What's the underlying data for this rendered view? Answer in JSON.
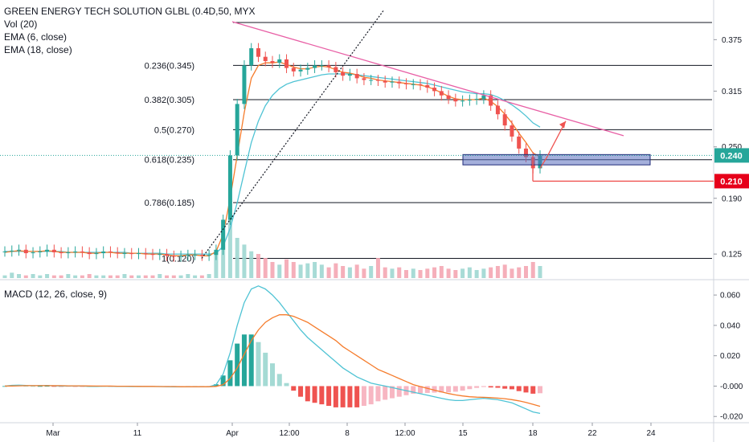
{
  "header": {
    "symbol_title": "GREEN ENERGY TECH SOLUTION GLBL (0.4D,50, MYX",
    "volume_indicator": "Vol (20)",
    "ema_short": "EMA (6, close)",
    "ema_long": "EMA (18, close)"
  },
  "macd_title": "MACD (12, 26, close, 9)",
  "colors": {
    "up": "#26a69a",
    "down": "#ef5350",
    "volume_up": "#9fd7d1",
    "volume_down": "#f4a6b3",
    "ema_short": "#f57c2c",
    "ema_long": "#4fc3d4",
    "trendline": "#e85fa5",
    "target_zone": "#5b6fbf",
    "arrow": "#ef5350"
  },
  "chart_data": [
    {
      "type": "candlestick",
      "ylim": [
        0.097,
        0.41
      ],
      "y_ticks": [
        "0.375",
        "0.315",
        "0.250",
        "0.190",
        "0.125"
      ],
      "x_ticks": [
        "Mar",
        "11",
        "Apr",
        "12:00",
        "8",
        "12:00",
        "15",
        "18",
        "22",
        "24"
      ],
      "last_price_label": "0.240",
      "marker_price_label": "0.210",
      "fib_levels": [
        {
          "ratio": "0.236",
          "price": 0.345,
          "label": "0.236(0.345)"
        },
        {
          "ratio": "0.382",
          "price": 0.305,
          "label": "0.382(0.305)"
        },
        {
          "ratio": "0.5",
          "price": 0.27,
          "label": "0.5(0.270)"
        },
        {
          "ratio": "0.618",
          "price": 0.235,
          "label": "0.618(0.235)"
        },
        {
          "ratio": "0.786",
          "price": 0.185,
          "label": "0.786(0.185)"
        },
        {
          "ratio": "1",
          "price": 0.12,
          "label": "1(0.120)"
        }
      ],
      "fib_top": 0.395,
      "price_path": [
        0.128,
        0.129,
        0.13,
        0.126,
        0.127,
        0.128,
        0.13,
        0.127,
        0.126,
        0.127,
        0.128,
        0.127,
        0.125,
        0.126,
        0.128,
        0.127,
        0.126,
        0.126,
        0.125,
        0.126,
        0.125,
        0.124,
        0.125,
        0.123,
        0.122,
        0.123,
        0.124,
        0.124,
        0.123,
        0.124,
        0.13,
        0.165,
        0.24,
        0.3,
        0.345,
        0.365,
        0.355,
        0.35,
        0.348,
        0.352,
        0.342,
        0.338,
        0.34,
        0.342,
        0.345,
        0.345,
        0.343,
        0.337,
        0.333,
        0.335,
        0.33,
        0.328,
        0.328,
        0.327,
        0.325,
        0.326,
        0.324,
        0.323,
        0.323,
        0.322,
        0.319,
        0.315,
        0.31,
        0.306,
        0.303,
        0.304,
        0.305,
        0.306,
        0.31,
        0.298,
        0.288,
        0.275,
        0.262,
        0.248,
        0.238,
        0.225,
        0.24
      ],
      "ema_short": [
        0.127,
        0.128,
        0.129,
        0.128,
        0.128,
        0.128,
        0.129,
        0.128,
        0.127,
        0.127,
        0.127,
        0.127,
        0.126,
        0.126,
        0.127,
        0.127,
        0.126,
        0.126,
        0.126,
        0.126,
        0.125,
        0.125,
        0.125,
        0.124,
        0.123,
        0.123,
        0.124,
        0.124,
        0.123,
        0.123,
        0.128,
        0.148,
        0.19,
        0.24,
        0.29,
        0.33,
        0.345,
        0.348,
        0.348,
        0.349,
        0.346,
        0.343,
        0.341,
        0.341,
        0.343,
        0.344,
        0.343,
        0.34,
        0.337,
        0.336,
        0.334,
        0.331,
        0.33,
        0.328,
        0.327,
        0.326,
        0.325,
        0.324,
        0.323,
        0.322,
        0.32,
        0.317,
        0.313,
        0.309,
        0.306,
        0.305,
        0.305,
        0.305,
        0.307,
        0.303,
        0.297,
        0.288,
        0.278,
        0.266,
        0.255,
        0.243,
        0.238
      ],
      "ema_long": [
        0.128,
        0.128,
        0.128,
        0.128,
        0.128,
        0.128,
        0.128,
        0.128,
        0.128,
        0.127,
        0.127,
        0.127,
        0.127,
        0.127,
        0.127,
        0.127,
        0.127,
        0.127,
        0.126,
        0.126,
        0.126,
        0.126,
        0.126,
        0.125,
        0.125,
        0.125,
        0.125,
        0.125,
        0.125,
        0.125,
        0.126,
        0.134,
        0.155,
        0.185,
        0.22,
        0.255,
        0.28,
        0.298,
        0.31,
        0.318,
        0.323,
        0.326,
        0.328,
        0.33,
        0.332,
        0.334,
        0.335,
        0.335,
        0.335,
        0.335,
        0.334,
        0.333,
        0.332,
        0.331,
        0.33,
        0.329,
        0.328,
        0.327,
        0.326,
        0.325,
        0.324,
        0.322,
        0.32,
        0.318,
        0.316,
        0.314,
        0.313,
        0.312,
        0.312,
        0.311,
        0.308,
        0.304,
        0.299,
        0.293,
        0.286,
        0.278,
        0.273
      ],
      "volume": [
        0.2,
        0.4,
        0.3,
        0.2,
        0.3,
        0.2,
        0.3,
        0.2,
        0.2,
        0.3,
        0.2,
        0.2,
        0.3,
        0.2,
        0.2,
        0.2,
        0.2,
        0.3,
        0.2,
        0.2,
        0.2,
        0.2,
        0.3,
        0.2,
        0.2,
        0.2,
        0.3,
        0.2,
        0.2,
        0.3,
        2.0,
        3.5,
        4.5,
        3.0,
        2.5,
        2.0,
        1.8,
        1.5,
        1.2,
        1.0,
        1.4,
        1.2,
        1.0,
        1.1,
        1.2,
        1.0,
        0.8,
        1.1,
        0.9,
        0.8,
        1.0,
        0.7,
        0.9,
        1.5,
        0.8,
        0.7,
        0.8,
        0.6,
        0.7,
        0.6,
        0.7,
        0.8,
        0.9,
        0.7,
        0.6,
        0.7,
        0.8,
        0.6,
        0.7,
        0.8,
        0.9,
        1.0,
        0.7,
        0.8,
        0.9,
        1.2,
        0.9
      ]
    },
    {
      "type": "macd",
      "ylim": [
        -0.022,
        0.068
      ],
      "y_ticks": [
        "0.060",
        "0.040",
        "0.020",
        "-0.000",
        "-0.020"
      ],
      "macd": [
        0.0,
        0.0005,
        0.0006,
        0.0004,
        0.0003,
        0.0003,
        0.0004,
        0.0002,
        0.0001,
        0.0001,
        0.0,
        0.0,
        -0.0002,
        -0.0002,
        -0.0001,
        -0.0001,
        -0.0002,
        -0.0002,
        -0.0003,
        -0.0002,
        -0.0003,
        -0.0003,
        -0.0003,
        -0.0004,
        -0.0005,
        -0.0005,
        -0.0004,
        -0.0004,
        -0.0004,
        -0.0004,
        0.001,
        0.008,
        0.022,
        0.04,
        0.055,
        0.064,
        0.066,
        0.064,
        0.06,
        0.055,
        0.049,
        0.043,
        0.037,
        0.032,
        0.028,
        0.024,
        0.02,
        0.016,
        0.012,
        0.009,
        0.006,
        0.004,
        0.002,
        0.001,
        0.0,
        -0.001,
        -0.002,
        -0.003,
        -0.004,
        -0.005,
        -0.006,
        -0.007,
        -0.008,
        -0.009,
        -0.0095,
        -0.0095,
        -0.009,
        -0.0085,
        -0.008,
        -0.0085,
        -0.009,
        -0.01,
        -0.011,
        -0.013,
        -0.015,
        -0.017,
        -0.018
      ],
      "signal": [
        0.0,
        0.0001,
        0.0002,
        0.0003,
        0.0003,
        0.0003,
        0.0003,
        0.0003,
        0.0003,
        0.0002,
        0.0002,
        0.0002,
        0.0001,
        0.0,
        0.0,
        0.0,
        -0.0001,
        -0.0001,
        -0.0001,
        -0.0002,
        -0.0002,
        -0.0002,
        -0.0003,
        -0.0003,
        -0.0003,
        -0.0004,
        -0.0004,
        -0.0004,
        -0.0004,
        -0.0004,
        -0.0002,
        0.001,
        0.005,
        0.012,
        0.021,
        0.03,
        0.037,
        0.042,
        0.045,
        0.047,
        0.047,
        0.046,
        0.044,
        0.042,
        0.039,
        0.036,
        0.033,
        0.03,
        0.026,
        0.023,
        0.02,
        0.017,
        0.014,
        0.011,
        0.009,
        0.007,
        0.005,
        0.003,
        0.001,
        -0.0003,
        -0.0015,
        -0.0027,
        -0.0038,
        -0.0049,
        -0.0058,
        -0.0065,
        -0.007,
        -0.0073,
        -0.0074,
        -0.0076,
        -0.0079,
        -0.0083,
        -0.0089,
        -0.0097,
        -0.0108,
        -0.012,
        -0.0133
      ]
    }
  ]
}
